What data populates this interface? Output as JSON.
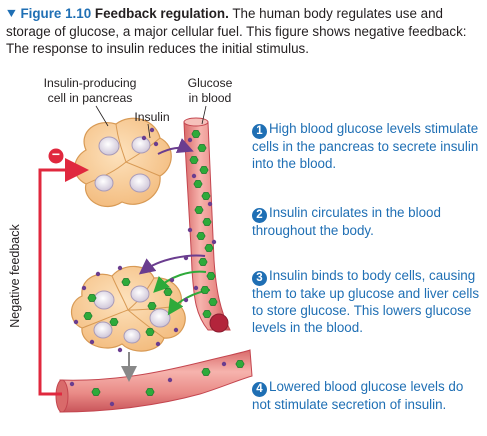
{
  "caption": {
    "figure": "Figure 1.10",
    "title": "Feedback regulation.",
    "text": " The human body regulates use and storage of glucose, a major cellular fuel. This figure shows negative feedback: The response to insulin reduces the initial stimulus."
  },
  "labels": {
    "insulin_cell_line1": "Insulin-producing",
    "insulin_cell_line2": "cell in pancreas",
    "insulin": "Insulin",
    "glucose_line1": "Glucose",
    "glucose_line2": "in blood",
    "negative_feedback": "Negative feedback",
    "minus_sign": "−"
  },
  "steps": [
    {
      "number": "1",
      "text": "High blood glucose levels stimulate cells in the pancreas to secrete insulin into the blood."
    },
    {
      "number": "2",
      "text": "Insulin circulates in the blood throughout the body."
    },
    {
      "number": "3",
      "text": "Insulin binds to body cells, causing them to take up glucose and liver cells to store glucose. This lowers glucose levels in the blood."
    },
    {
      "number": "4",
      "text": "Lowered blood glucose levels do not stimulate secretion of insulin."
    }
  ],
  "colors": {
    "accent_blue": "#1f6fb4",
    "feedback_red": "#e0283e",
    "glucose_green": "#2eaa3a",
    "insulin_purple": "#6a3d8f",
    "vessel_pink": "#e07d7d",
    "cell_tan": "#f4c48c"
  },
  "icons": {
    "collapse": "triangle-down-icon",
    "glucose": "hexagon-icon",
    "insulin": "dot-icon"
  }
}
